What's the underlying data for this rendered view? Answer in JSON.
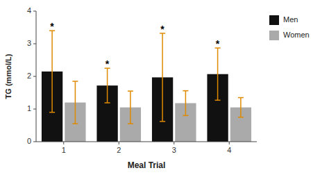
{
  "chart_data": {
    "type": "bar",
    "categories": [
      "1",
      "2",
      "3",
      "4"
    ],
    "series": [
      {
        "name": "Men",
        "color": "#111111",
        "values": [
          2.15,
          1.72,
          1.97,
          2.07
        ],
        "errors": [
          1.25,
          0.53,
          1.35,
          0.8
        ]
      },
      {
        "name": "Women",
        "color": "#aaaaaa",
        "values": [
          1.2,
          1.05,
          1.18,
          1.05
        ],
        "errors": [
          0.65,
          0.5,
          0.38,
          0.3
        ]
      }
    ],
    "annotations": [
      {
        "text": "*",
        "x": "1",
        "series": "Men"
      },
      {
        "text": "*",
        "x": "2",
        "series": "Men"
      },
      {
        "text": "*",
        "x": "3",
        "series": "Men"
      },
      {
        "text": "*",
        "x": "4",
        "series": "Men"
      }
    ],
    "xlabel": "Meal Trial",
    "ylabel": "TG (mmol/L)",
    "ylim": [
      0,
      4
    ],
    "yticks": [
      0,
      1,
      2,
      3,
      4
    ],
    "grid": false,
    "legend": "right"
  }
}
